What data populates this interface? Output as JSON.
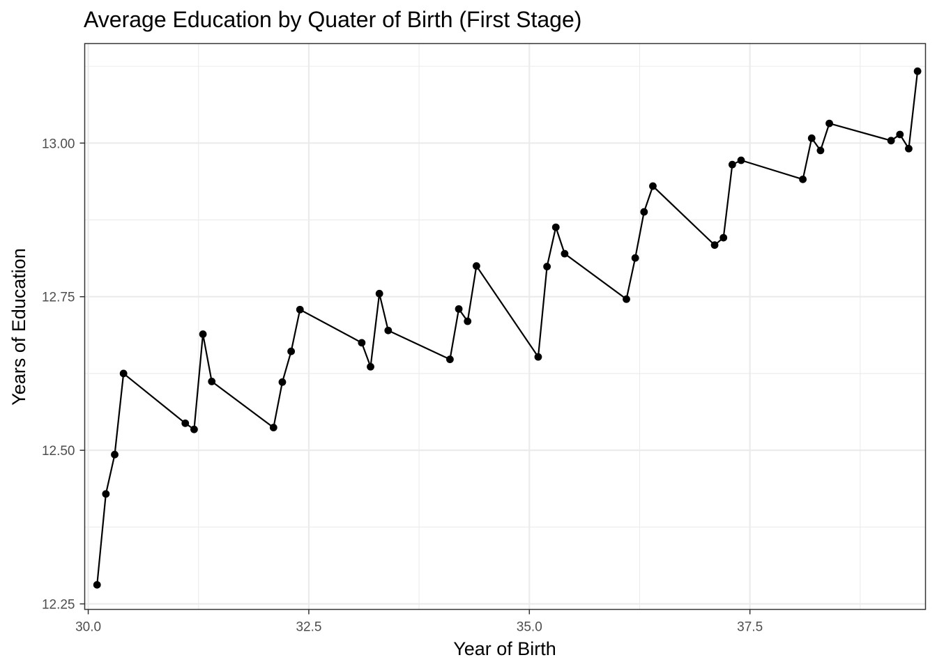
{
  "chart_data": {
    "type": "line",
    "title": "Average Education by Quater of Birth (First Stage)",
    "xlabel": "Year of Birth",
    "ylabel": "Years of Education",
    "xlim": [
      29.96,
      39.49
    ],
    "ylim": [
      12.241,
      13.162
    ],
    "x_ticks": [
      "30.0",
      "32.5",
      "35.0",
      "37.5"
    ],
    "x_tick_values": [
      30.0,
      32.5,
      35.0,
      37.5
    ],
    "y_ticks": [
      "12.25",
      "12.50",
      "12.75",
      "13.00"
    ],
    "y_tick_values": [
      12.25,
      12.5,
      12.75,
      13.0
    ],
    "grid": true,
    "legend": "none",
    "colors": {
      "series": "#000000",
      "grid": "#ebebeb",
      "border": "#333333",
      "tick_label": "#4d4d4d"
    },
    "series": [
      {
        "x": [
          30.1,
          30.2,
          30.3,
          30.4,
          31.1,
          31.2,
          31.3,
          31.4,
          32.1,
          32.2,
          32.3,
          32.4,
          33.1,
          33.2,
          33.3,
          33.4,
          34.1,
          34.2,
          34.3,
          34.4,
          35.1,
          35.2,
          35.3,
          35.4,
          36.1,
          36.2,
          36.3,
          36.4,
          37.1,
          37.2,
          37.3,
          37.4,
          38.1,
          38.2,
          38.3,
          38.4,
          39.1,
          39.2,
          39.3,
          39.4
        ],
        "values": [
          12.281,
          12.429,
          12.493,
          12.625,
          12.544,
          12.534,
          12.689,
          12.612,
          12.537,
          12.611,
          12.661,
          12.729,
          12.675,
          12.636,
          12.755,
          12.695,
          12.648,
          12.73,
          12.71,
          12.8,
          12.652,
          12.799,
          12.863,
          12.82,
          12.746,
          12.813,
          12.888,
          12.93,
          12.834,
          12.846,
          12.965,
          12.972,
          12.941,
          13.008,
          12.988,
          13.032,
          13.004,
          13.014,
          12.991,
          13.117
        ]
      }
    ]
  }
}
